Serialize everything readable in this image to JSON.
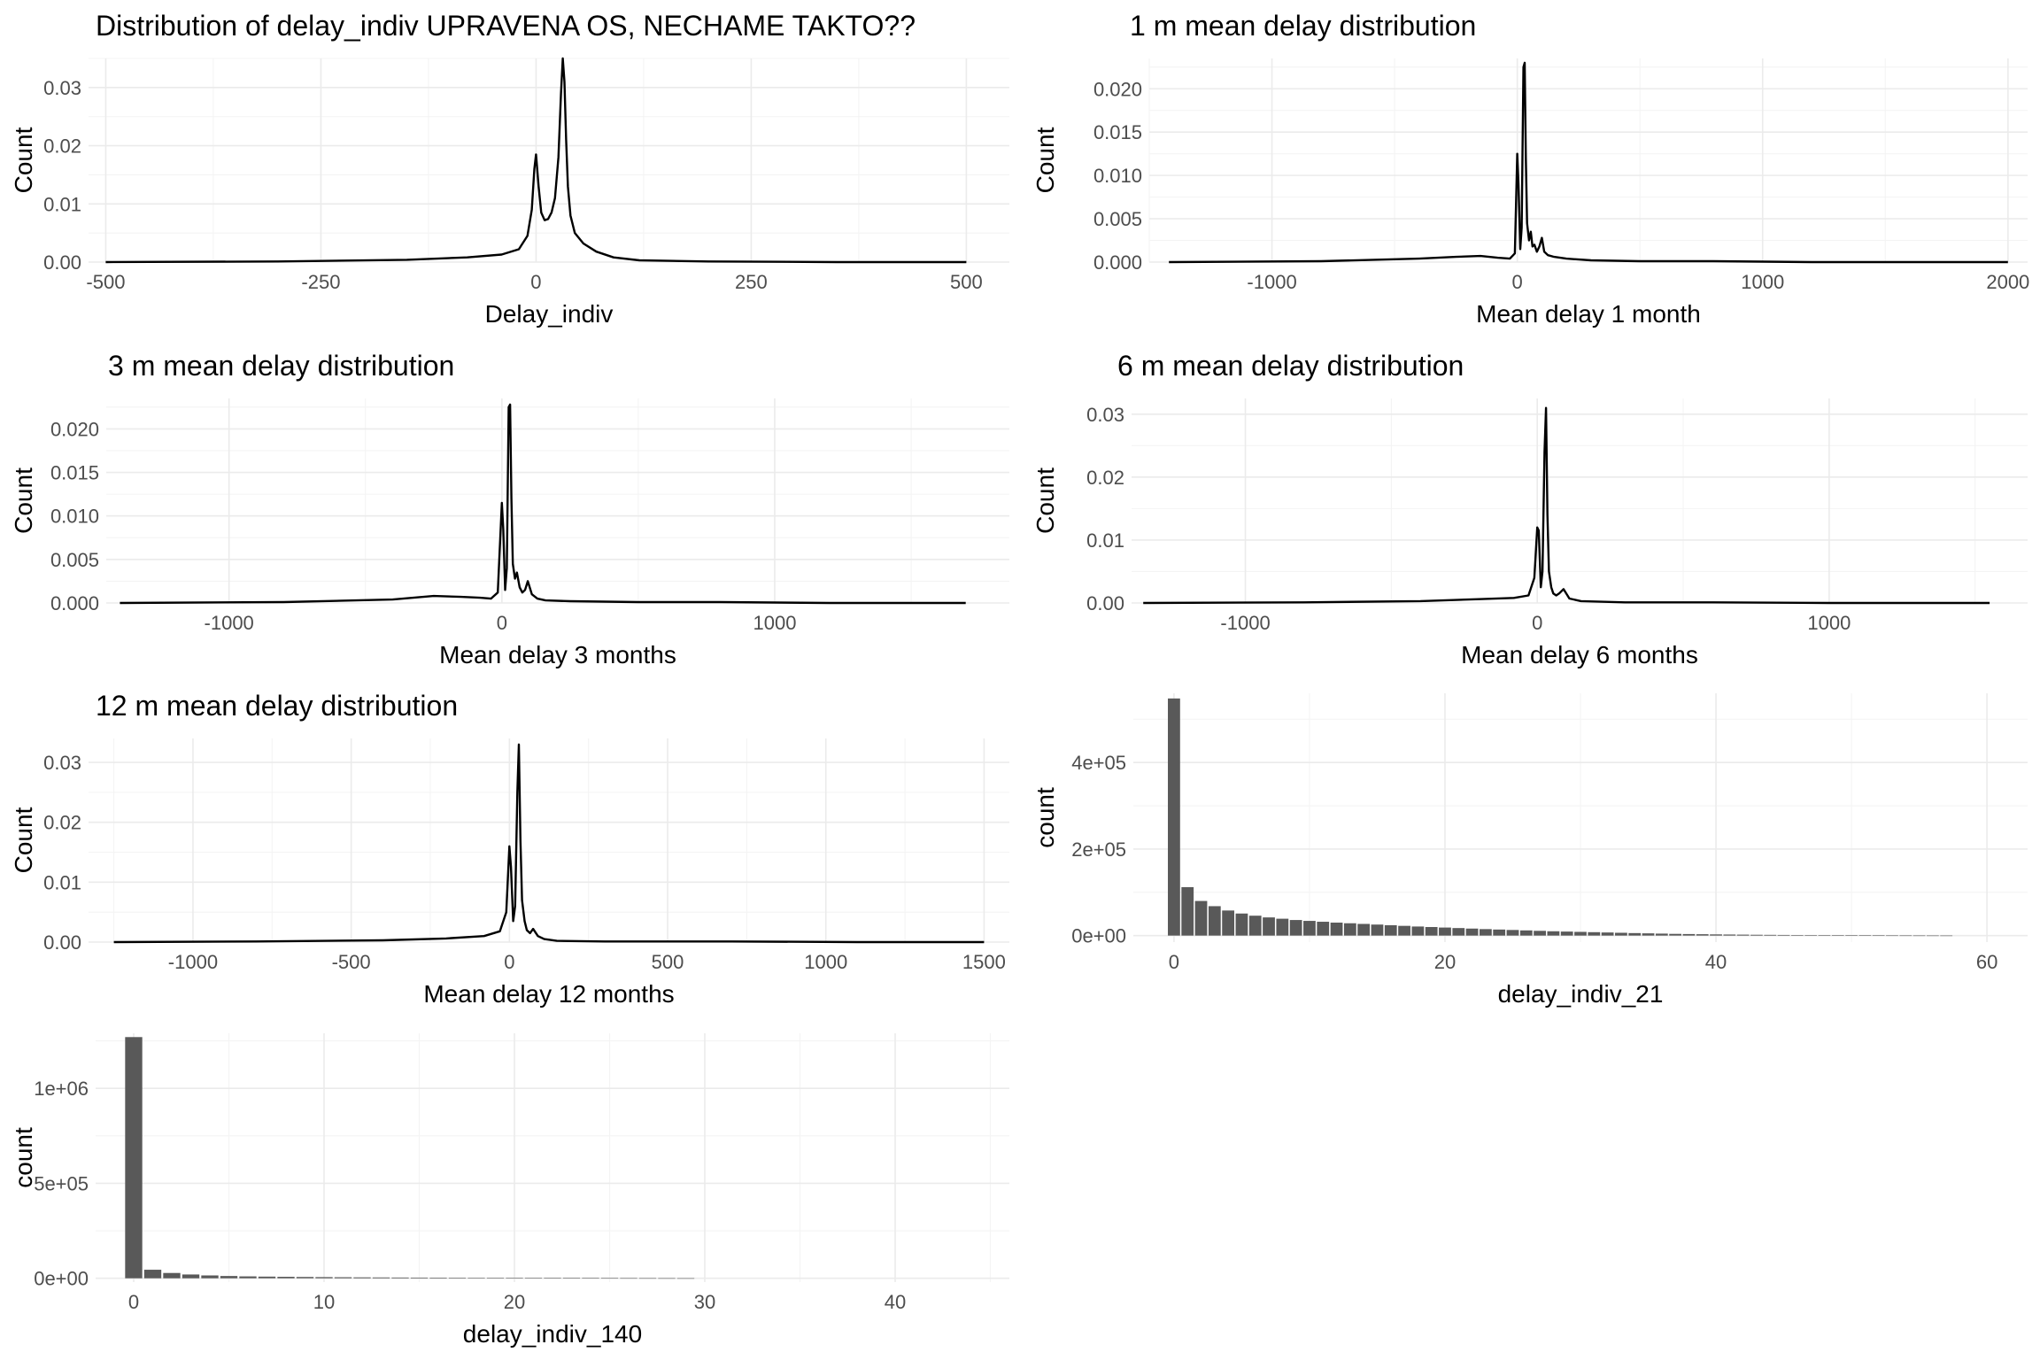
{
  "chart_data": [
    {
      "type": "line",
      "title": "Distribution of delay_indiv UPRAVENA OS, NECHAME TAKTO??",
      "xlabel": "Delay_indiv",
      "ylabel": "Count",
      "xlim": [
        -520,
        550
      ],
      "ylim": [
        0,
        0.035
      ],
      "x_ticks": [
        -500,
        -250,
        0,
        250,
        500
      ],
      "y_ticks": [
        0,
        0.01,
        0.02,
        0.03
      ],
      "x_tick_labels": [
        "-500",
        "-250",
        "0",
        "250",
        "500"
      ],
      "y_tick_labels": [
        "0.00",
        "0.01",
        "0.02",
        "0.03"
      ],
      "grid": true,
      "series": [
        {
          "x": [
            -500,
            -300,
            -150,
            -80,
            -40,
            -20,
            -10,
            -5,
            -2,
            0,
            3,
            6,
            10,
            14,
            18,
            22,
            26,
            29,
            31,
            33,
            35,
            37,
            40,
            45,
            55,
            70,
            90,
            120,
            200,
            350,
            500
          ],
          "y": [
            0.0,
            0.0001,
            0.0004,
            0.0008,
            0.0013,
            0.0022,
            0.0045,
            0.009,
            0.016,
            0.0185,
            0.013,
            0.0085,
            0.0072,
            0.0074,
            0.0085,
            0.011,
            0.018,
            0.029,
            0.035,
            0.031,
            0.021,
            0.013,
            0.008,
            0.005,
            0.0032,
            0.0018,
            0.0008,
            0.0003,
            0.0001,
            0.0,
            0.0
          ]
        }
      ]
    },
    {
      "type": "line",
      "title": "1 m mean delay distribution",
      "xlabel": "Mean delay 1 month",
      "ylabel": "Count",
      "xlim": [
        -1500,
        2080
      ],
      "ylim": [
        0,
        0.0235
      ],
      "x_ticks": [
        -1000,
        0,
        1000,
        2000
      ],
      "y_ticks": [
        0,
        0.005,
        0.01,
        0.015,
        0.02
      ],
      "x_tick_labels": [
        "-1000",
        "0",
        "1000",
        "2000"
      ],
      "y_tick_labels": [
        "0.000",
        "0.005",
        "0.010",
        "0.015",
        "0.020"
      ],
      "grid": true,
      "series": [
        {
          "x": [
            -1420,
            -800,
            -400,
            -250,
            -150,
            -80,
            -30,
            -10,
            0,
            5,
            12,
            18,
            25,
            30,
            35,
            40,
            48,
            55,
            62,
            70,
            80,
            90,
            100,
            110,
            125,
            150,
            200,
            300,
            500,
            800,
            1200,
            2000
          ],
          "y": [
            0.0,
            0.0001,
            0.0004,
            0.0006,
            0.0007,
            0.0005,
            0.0004,
            0.001,
            0.0125,
            0.009,
            0.0015,
            0.004,
            0.0225,
            0.023,
            0.012,
            0.0045,
            0.0025,
            0.0035,
            0.0018,
            0.002,
            0.0012,
            0.0018,
            0.0028,
            0.0012,
            0.0008,
            0.0006,
            0.0004,
            0.0002,
            0.0001,
            0.0001,
            0.0,
            0.0
          ]
        }
      ]
    },
    {
      "type": "line",
      "title": "3 m mean delay distribution",
      "xlabel": "Mean delay 3 months",
      "ylabel": "Count",
      "xlim": [
        -1450,
        1860
      ],
      "ylim": [
        0,
        0.0235
      ],
      "x_ticks": [
        -1000,
        0,
        1000
      ],
      "y_ticks": [
        0,
        0.005,
        0.01,
        0.015,
        0.02
      ],
      "x_tick_labels": [
        "-1000",
        "0",
        "1000"
      ],
      "y_tick_labels": [
        "0.000",
        "0.005",
        "0.010",
        "0.015",
        "0.020"
      ],
      "grid": true,
      "series": [
        {
          "x": [
            -1400,
            -800,
            -400,
            -250,
            -150,
            -80,
            -40,
            -15,
            0,
            5,
            12,
            18,
            25,
            30,
            35,
            40,
            48,
            55,
            65,
            75,
            85,
            95,
            110,
            130,
            160,
            250,
            500,
            800,
            1200,
            1700
          ],
          "y": [
            0.0,
            0.0001,
            0.0004,
            0.0008,
            0.0007,
            0.0006,
            0.0005,
            0.0012,
            0.0115,
            0.0085,
            0.0015,
            0.004,
            0.0225,
            0.0228,
            0.012,
            0.0045,
            0.0028,
            0.0035,
            0.0018,
            0.0012,
            0.0015,
            0.0025,
            0.001,
            0.0005,
            0.0003,
            0.0002,
            0.0001,
            0.0001,
            0.0,
            0.0
          ]
        }
      ]
    },
    {
      "type": "line",
      "title": "6 m mean delay distribution",
      "xlabel": "Mean delay 6 months",
      "ylabel": "Count",
      "xlim": [
        -1390,
        1680
      ],
      "ylim": [
        0,
        0.0325
      ],
      "x_ticks": [
        -1000,
        0,
        1000
      ],
      "y_ticks": [
        0,
        0.01,
        0.02,
        0.03
      ],
      "x_tick_labels": [
        "-1000",
        "0",
        "1000"
      ],
      "y_tick_labels": [
        "0.00",
        "0.01",
        "0.02",
        "0.03"
      ],
      "grid": true,
      "series": [
        {
          "x": [
            -1350,
            -800,
            -400,
            -200,
            -80,
            -30,
            -10,
            0,
            5,
            12,
            18,
            25,
            30,
            35,
            40,
            48,
            55,
            65,
            75,
            90,
            110,
            150,
            300,
            600,
            1000,
            1550
          ],
          "y": [
            0.0,
            0.0001,
            0.0003,
            0.0006,
            0.0008,
            0.0012,
            0.004,
            0.012,
            0.0115,
            0.0025,
            0.005,
            0.024,
            0.031,
            0.014,
            0.005,
            0.0025,
            0.0015,
            0.0012,
            0.0015,
            0.0022,
            0.0007,
            0.0003,
            0.0001,
            0.0001,
            0.0,
            0.0
          ]
        }
      ]
    },
    {
      "type": "line",
      "title": "12 m mean delay distribution",
      "xlabel": "Mean delay 12 months",
      "ylabel": "Count",
      "xlim": [
        -1330,
        1580
      ],
      "ylim": [
        0,
        0.034
      ],
      "x_ticks": [
        -1000,
        -500,
        0,
        500,
        1000,
        1500
      ],
      "y_ticks": [
        0,
        0.01,
        0.02,
        0.03
      ],
      "x_tick_labels": [
        "-1000",
        "-500",
        "0",
        "500",
        "1000",
        "1500"
      ],
      "y_tick_labels": [
        "0.00",
        "0.01",
        "0.02",
        "0.03"
      ],
      "grid": true,
      "series": [
        {
          "x": [
            -1250,
            -800,
            -400,
            -200,
            -80,
            -30,
            -10,
            0,
            5,
            12,
            18,
            25,
            30,
            35,
            40,
            48,
            55,
            65,
            75,
            90,
            110,
            150,
            300,
            700,
            1100,
            1500
          ],
          "y": [
            0.0,
            0.0001,
            0.0003,
            0.0006,
            0.001,
            0.0018,
            0.005,
            0.016,
            0.0125,
            0.0035,
            0.006,
            0.025,
            0.033,
            0.017,
            0.007,
            0.0035,
            0.002,
            0.0015,
            0.0022,
            0.001,
            0.0005,
            0.0002,
            0.0001,
            0.0001,
            0.0,
            0.0
          ]
        }
      ]
    },
    {
      "type": "bar",
      "title": "",
      "xlabel": "delay_indiv_21",
      "ylabel": "count",
      "xlim": [
        -3,
        63
      ],
      "ylim": [
        -15000,
        560000
      ],
      "x_ticks": [
        0,
        20,
        40,
        60
      ],
      "y_ticks": [
        0,
        200000,
        400000
      ],
      "x_tick_labels": [
        "0",
        "20",
        "40",
        "60"
      ],
      "y_tick_labels": [
        "0e+00",
        "2e+05",
        "4e+05"
      ],
      "grid": true,
      "categories": [
        0,
        1,
        2,
        3,
        4,
        5,
        6,
        7,
        8,
        9,
        10,
        11,
        12,
        13,
        14,
        15,
        16,
        17,
        18,
        19,
        20,
        21,
        22,
        23,
        24,
        25,
        26,
        27,
        28,
        29,
        30,
        31,
        32,
        33,
        34,
        35,
        36,
        37,
        38,
        39,
        40,
        41,
        42,
        43,
        44,
        45,
        46,
        47,
        48,
        49,
        50,
        51,
        52,
        53,
        54,
        55,
        56,
        57
      ],
      "values": [
        548000,
        112000,
        80000,
        68000,
        58000,
        51000,
        46000,
        42000,
        39000,
        36000,
        34000,
        32000,
        30000,
        28500,
        27000,
        25500,
        24000,
        22500,
        21000,
        19800,
        18600,
        17400,
        16200,
        15000,
        14000,
        13000,
        12000,
        11000,
        10000,
        9300,
        8600,
        7900,
        7200,
        6500,
        5800,
        5200,
        4600,
        4000,
        3600,
        3200,
        2800,
        2500,
        2200,
        1900,
        1700,
        1500,
        1300,
        1100,
        950,
        800,
        700,
        600,
        500,
        400,
        330,
        260,
        200,
        150
      ]
    },
    {
      "type": "bar",
      "title": "",
      "xlabel": "delay_indiv_140",
      "ylabel": "count",
      "xlim": [
        -2,
        46
      ],
      "ylim": [
        -20000,
        1290000
      ],
      "x_ticks": [
        0,
        10,
        20,
        30,
        40
      ],
      "y_ticks": [
        0,
        500000,
        1000000
      ],
      "x_tick_labels": [
        "0",
        "10",
        "20",
        "30",
        "40"
      ],
      "y_tick_labels": [
        "0e+00",
        "5e+05",
        "1e+06"
      ],
      "grid": true,
      "categories": [
        0,
        1,
        2,
        3,
        4,
        5,
        6,
        7,
        8,
        9,
        10,
        11,
        12,
        13,
        14,
        15,
        16,
        17,
        18,
        19,
        20,
        21,
        22,
        23,
        24,
        25,
        26,
        27,
        28,
        29
      ],
      "values": [
        1270000,
        45000,
        28000,
        20000,
        15000,
        12000,
        10000,
        8800,
        7800,
        7000,
        6200,
        5500,
        4900,
        4400,
        4000,
        3600,
        3300,
        3000,
        2700,
        2400,
        2200,
        2000,
        1800,
        1600,
        1400,
        1200,
        1000,
        800,
        600,
        400
      ]
    }
  ]
}
